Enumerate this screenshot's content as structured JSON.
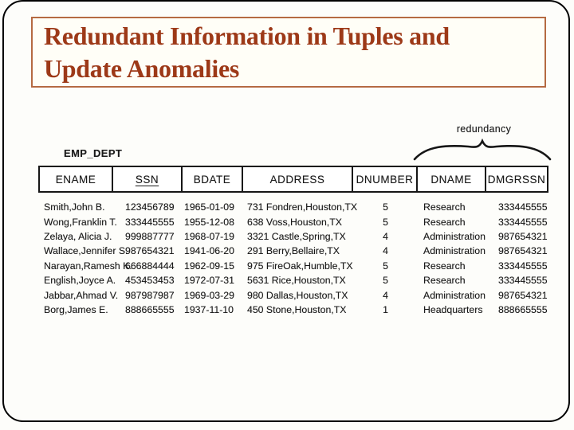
{
  "slide": {
    "title_line1": "Redundant Information in Tuples and",
    "title_line2": "Update Anomalies"
  },
  "figure": {
    "table_name": "EMP_DEPT",
    "annotation_label": "redundancy",
    "columns": [
      "ENAME",
      "SSN",
      "BDATE",
      "ADDRESS",
      "DNUMBER",
      "DNAME",
      "DMGRSSN"
    ],
    "primary_key_column": "SSN",
    "rows": [
      [
        "Smith,John B.",
        "123456789",
        "1965-01-09",
        "731 Fondren,Houston,TX",
        "5",
        "Research",
        "333445555"
      ],
      [
        "Wong,Franklin T.",
        "333445555",
        "1955-12-08",
        "638 Voss,Houston,TX",
        "5",
        "Research",
        "333445555"
      ],
      [
        "Zelaya, Alicia J.",
        "999887777",
        "1968-07-19",
        "3321 Castle,Spring,TX",
        "4",
        "Administration",
        "987654321"
      ],
      [
        "Wallace,Jennifer S.",
        "987654321",
        "1941-06-20",
        "291 Berry,Bellaire,TX",
        "4",
        "Administration",
        "987654321"
      ],
      [
        "Narayan,Ramesh K.",
        "666884444",
        "1962-09-15",
        "975 FireOak,Humble,TX",
        "5",
        "Research",
        "333445555"
      ],
      [
        "English,Joyce A.",
        "453453453",
        "1972-07-31",
        "5631 Rice,Houston,TX",
        "5",
        "Research",
        "333445555"
      ],
      [
        "Jabbar,Ahmad V.",
        "987987987",
        "1969-03-29",
        "980 Dallas,Houston,TX",
        "4",
        "Administration",
        "987654321"
      ],
      [
        "Borg,James E.",
        "888665555",
        "1937-11-10",
        "450 Stone,Houston,TX",
        "1",
        "Headquarters",
        "888665555"
      ]
    ]
  },
  "colors": {
    "title_text": "#9d3918",
    "title_box_border": "#b56a42",
    "frame_border": "#000000",
    "scan_ink": "#1a1a1a"
  }
}
